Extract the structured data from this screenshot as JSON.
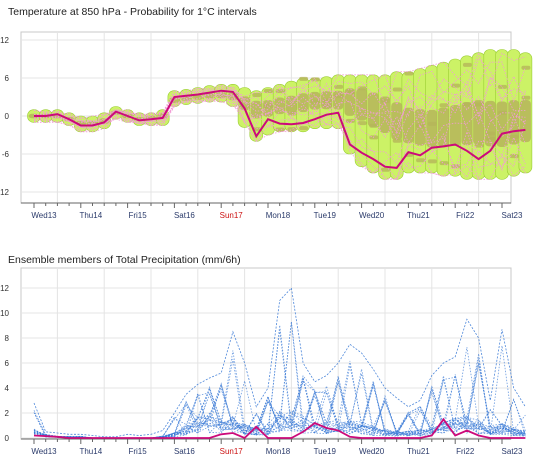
{
  "chart_data": [
    {
      "type": "area",
      "title": "Temperature at 850 hPa - Probability for 1°C intervals",
      "ylim": [
        -13,
        14
      ],
      "yticks": [
        12,
        6,
        0,
        -6,
        -12
      ],
      "ytick_labels": [
        "12",
        "6",
        "0",
        "-6",
        "-12"
      ],
      "day_labels": [
        "Wed13",
        "Thu14",
        "Fri15",
        "Sat16",
        "Sun17",
        "Mon18",
        "Tue19",
        "Wed20",
        "Thu21",
        "Fri22",
        "Sat23"
      ],
      "x_steps_per_day": 4,
      "grid": true,
      "probability_band_colors": [
        "#ccf266",
        "#b5b55a",
        "#f29bd6"
      ],
      "series": [
        {
          "role": "main-run",
          "color": "#cc0a7a",
          "values": [
            0,
            0,
            0.3,
            -0.5,
            -1.5,
            -1.5,
            -1,
            0.7,
            0,
            -0.7,
            -0.5,
            -0.3,
            3,
            3.2,
            3.4,
            3.7,
            4,
            3.8,
            1.2,
            -3.2,
            -0.5,
            -1.2,
            -1.3,
            -1.1,
            -0.5,
            0.2,
            0.5,
            -4.5,
            -5.8,
            -6.8,
            -8,
            -8.2,
            -5.7,
            -6.2,
            -5,
            -4.8,
            -4.5,
            -5.5,
            -6.8,
            -5.5,
            -2.8,
            -2.4,
            -2.2
          ]
        },
        {
          "role": "ensemble-median",
          "color": "#c8c0a0",
          "values": [
            0,
            0,
            0,
            -0.5,
            -1.2,
            -1.2,
            -0.8,
            0.5,
            0,
            -0.5,
            -0.3,
            0,
            2.5,
            2.8,
            3,
            3.2,
            3.3,
            3.1,
            2,
            1,
            1.2,
            1.6,
            1.8,
            2.1,
            2.4,
            2.5,
            2.5,
            2.2,
            1.8,
            1,
            0.2,
            -0.8,
            -1.5,
            -1.8,
            -2,
            -1.8,
            -1.5,
            -1.2,
            -1,
            -1.2,
            -1.3,
            -1,
            -0.8
          ]
        },
        {
          "role": "ensemble-spread",
          "min": [
            -1,
            -1,
            -1,
            -1.5,
            -2.5,
            -2.5,
            -2,
            -0.5,
            -1,
            -1.5,
            -1.5,
            -1.5,
            1.5,
            1.8,
            2,
            2.2,
            2.2,
            1.5,
            -1.8,
            -4,
            -3,
            -2.5,
            -2.5,
            -2.5,
            -2,
            -2,
            -2,
            -6,
            -8,
            -9,
            -10,
            -10,
            -9,
            -9,
            -9,
            -9.5,
            -9.5,
            -10,
            -10,
            -10,
            -10,
            -9.5,
            -9
          ],
          "max": [
            1,
            1,
            1,
            0.5,
            0,
            0,
            0.5,
            1.5,
            1,
            0.5,
            0.5,
            1,
            4,
            4.2,
            4.5,
            4.8,
            5,
            5,
            4.5,
            4,
            4.5,
            5,
            5.5,
            6,
            6,
            6.2,
            6.5,
            6.5,
            6.5,
            6.5,
            6.5,
            7,
            7,
            7.5,
            8,
            8.5,
            9,
            9.5,
            10,
            10.5,
            10.5,
            10.5,
            10
          ]
        }
      ]
    },
    {
      "type": "line",
      "title": "Ensemble members of Total Precipitation (mm/6h)",
      "ylim": [
        0,
        12.5
      ],
      "yticks": [
        12,
        10,
        8,
        6,
        4,
        2,
        0
      ],
      "ytick_labels": [
        "12",
        "10",
        "8",
        "6",
        "4",
        "2",
        "0"
      ],
      "day_labels": [
        "Wed13",
        "Thu14",
        "Fri15",
        "Sat16",
        "Sun17",
        "Mon18",
        "Tue19",
        "Wed20",
        "Thu21",
        "Fri22",
        "Sat23"
      ],
      "x_steps_per_day": 4,
      "grid": true,
      "series": [
        {
          "role": "main-run",
          "color": "#cc0a7a",
          "values": [
            0.2,
            0.15,
            0.1,
            0,
            0,
            0,
            0,
            0,
            0,
            0,
            0,
            0,
            0,
            0,
            0,
            0,
            0.3,
            0.4,
            0,
            0.9,
            0,
            0,
            0,
            0.5,
            1.2,
            0.8,
            0.6,
            0.1,
            0,
            0,
            0,
            0,
            0,
            0,
            0.2,
            1.5,
            0.2,
            0.6,
            0.2,
            0,
            0,
            0,
            0
          ]
        },
        {
          "role": "ensemble-spread",
          "color": "#3a7ad6",
          "max": [
            2.8,
            0.5,
            0.4,
            0.3,
            0.3,
            0.2,
            0.1,
            0.1,
            0.3,
            0.2,
            0.3,
            0.6,
            2,
            3.5,
            4.3,
            4.8,
            5.2,
            8.5,
            6,
            2.5,
            4,
            11,
            12,
            6,
            4.5,
            5,
            6,
            7.5,
            6.8,
            5.5,
            4,
            3.2,
            2.5,
            3,
            5,
            6,
            6.5,
            9.5,
            8,
            3,
            8.7,
            4,
            2.5
          ],
          "median": [
            0.5,
            0.2,
            0.1,
            0.1,
            0.1,
            0,
            0,
            0,
            0,
            0,
            0,
            0.1,
            0.3,
            0.8,
            1.2,
            1.4,
            1,
            1.2,
            0.8,
            0.6,
            0.8,
            1.5,
            1.6,
            1.2,
            1,
            0.9,
            1,
            1.1,
            0.9,
            0.7,
            0.5,
            0.4,
            0.4,
            0.5,
            0.7,
            0.9,
            1.1,
            1.3,
            1.1,
            0.7,
            0.8,
            0.6,
            0.4
          ]
        }
      ]
    }
  ]
}
